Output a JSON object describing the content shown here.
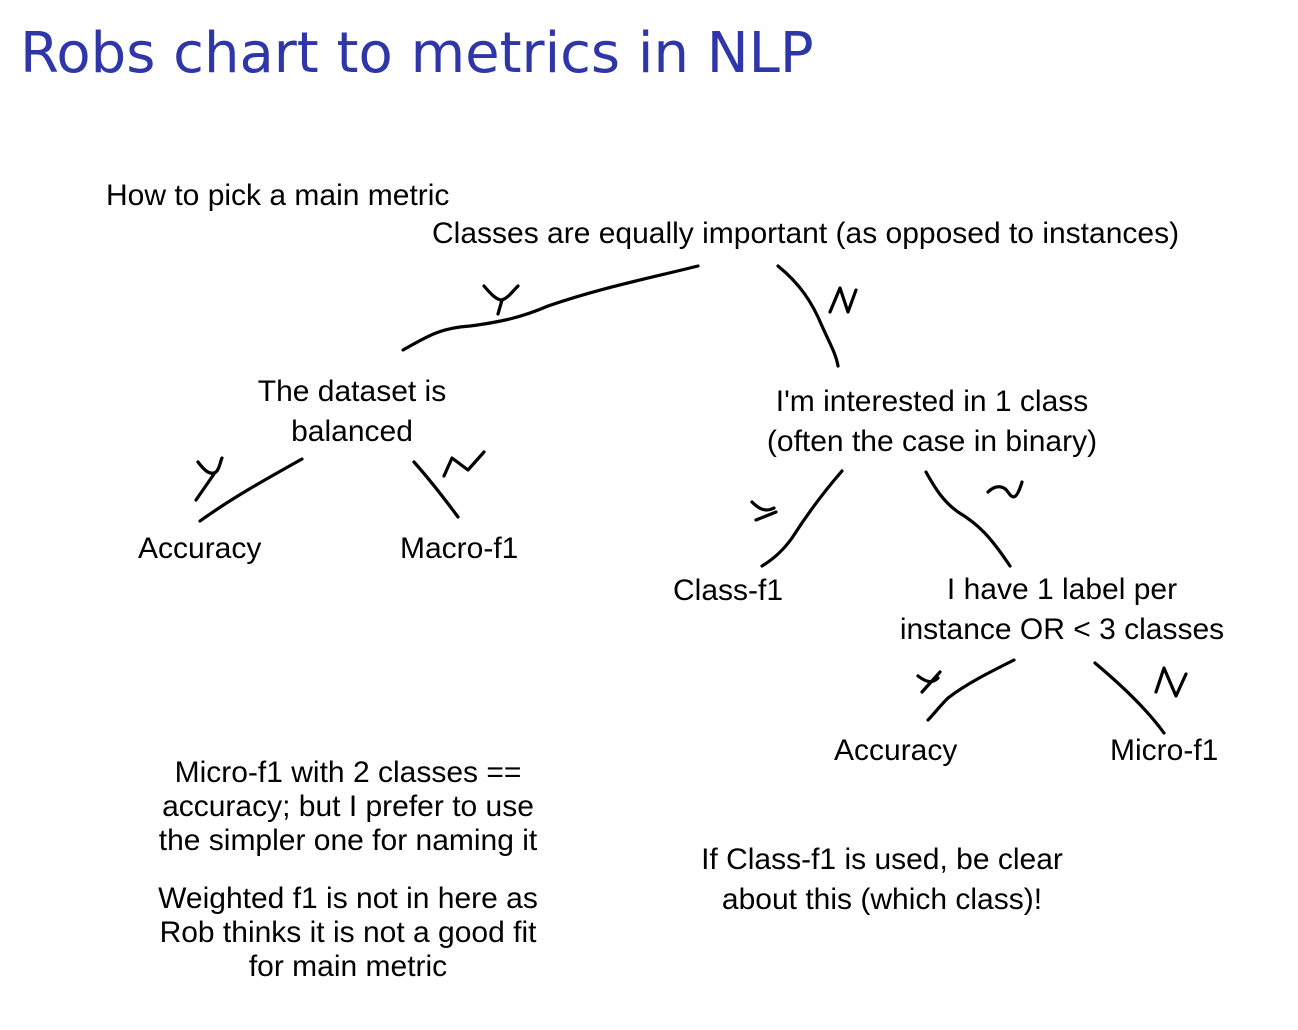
{
  "title": "Robs chart to metrics in NLP",
  "intro": "How to pick a main metric",
  "root_question": "Classes are equally important (as opposed to instances)",
  "balanced_question": [
    "The dataset is",
    "balanced"
  ],
  "interest_question": [
    "I'm interested in 1 class",
    "(often the case in binary)"
  ],
  "label_question": [
    "I have 1 label per",
    "instance OR < 3 classes"
  ],
  "leaves": {
    "accuracy_left": "Accuracy",
    "macro_f1": "Macro-f1",
    "class_f1": "Class-f1",
    "accuracy_right": "Accuracy",
    "micro_f1": "Micro-f1"
  },
  "notes": {
    "micro_note": [
      "Micro-f1 with 2 classes ==",
      "accuracy; but I prefer to use",
      "the simpler one for naming it"
    ],
    "weighted_note": [
      "Weighted f1 is not in here as",
      "Rob thinks it is not a good fit",
      "for main metric"
    ],
    "classf1_note": [
      "If Class-f1 is used, be clear",
      "about this (which class)!"
    ]
  },
  "line_color": "#000000",
  "title_color": "#2f36a8"
}
